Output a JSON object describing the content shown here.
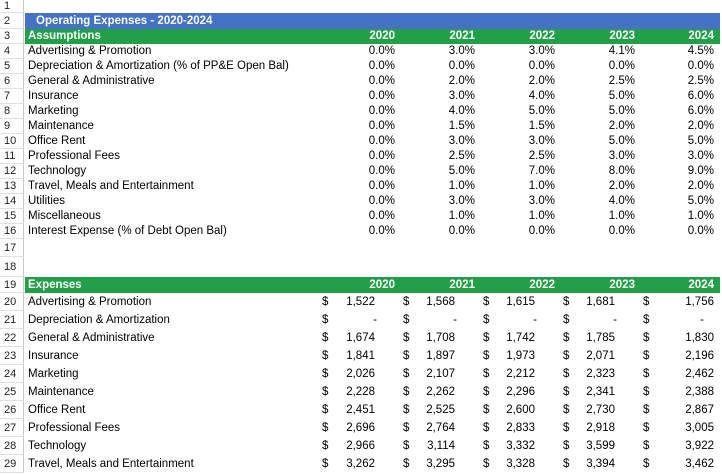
{
  "colors": {
    "title_band": "#4472c4",
    "section_band": "#21a047"
  },
  "title": "Operating Expenses - 2020-2024",
  "assumptions": {
    "header": "Assumptions",
    "years": [
      "2020",
      "2021",
      "2022",
      "2023",
      "2024"
    ],
    "rows": [
      {
        "label": "Advertising & Promotion",
        "values": [
          "0.0%",
          "3.0%",
          "3.0%",
          "4.1%",
          "4.5%"
        ]
      },
      {
        "label": "Depreciation & Amortization (% of PP&E Open Bal)",
        "values": [
          "0.0%",
          "0.0%",
          "0.0%",
          "0.0%",
          "0.0%"
        ]
      },
      {
        "label": "General & Administrative",
        "values": [
          "0.0%",
          "2.0%",
          "2.0%",
          "2.5%",
          "2.5%"
        ]
      },
      {
        "label": "Insurance",
        "values": [
          "0.0%",
          "3.0%",
          "4.0%",
          "5.0%",
          "6.0%"
        ]
      },
      {
        "label": "Marketing",
        "values": [
          "0.0%",
          "4.0%",
          "5.0%",
          "5.0%",
          "6.0%"
        ]
      },
      {
        "label": "Maintenance",
        "values": [
          "0.0%",
          "1.5%",
          "1.5%",
          "2.0%",
          "2.0%"
        ]
      },
      {
        "label": "Office Rent",
        "values": [
          "0.0%",
          "3.0%",
          "3.0%",
          "5.0%",
          "5.0%"
        ]
      },
      {
        "label": "Professional Fees",
        "values": [
          "0.0%",
          "2.5%",
          "2.5%",
          "3.0%",
          "3.0%"
        ]
      },
      {
        "label": "Technology",
        "values": [
          "0.0%",
          "5.0%",
          "7.0%",
          "8.0%",
          "9.0%"
        ]
      },
      {
        "label": "Travel, Meals and Entertainment",
        "values": [
          "0.0%",
          "1.0%",
          "1.0%",
          "2.0%",
          "2.0%"
        ]
      },
      {
        "label": "Utilities",
        "values": [
          "0.0%",
          "3.0%",
          "3.0%",
          "4.0%",
          "5.0%"
        ]
      },
      {
        "label": "Miscellaneous",
        "values": [
          "0.0%",
          "1.0%",
          "1.0%",
          "1.0%",
          "1.0%"
        ]
      },
      {
        "label": "Interest Expense (% of Debt Open Bal)",
        "values": [
          "0.0%",
          "0.0%",
          "0.0%",
          "0.0%",
          "0.0%"
        ]
      }
    ]
  },
  "expenses": {
    "header": "Expenses",
    "years": [
      "2020",
      "2021",
      "2022",
      "2023",
      "2024"
    ],
    "currency": "$",
    "rows": [
      {
        "label": "Advertising & Promotion",
        "values": [
          "1,522",
          "1,568",
          "1,615",
          "1,681",
          "1,756"
        ]
      },
      {
        "label": "Depreciation & Amortization",
        "values": [
          "-",
          "-",
          "-",
          "-",
          "-"
        ]
      },
      {
        "label": "General & Administrative",
        "values": [
          "1,674",
          "1,708",
          "1,742",
          "1,785",
          "1,830"
        ]
      },
      {
        "label": "Insurance",
        "values": [
          "1,841",
          "1,897",
          "1,973",
          "2,071",
          "2,196"
        ]
      },
      {
        "label": "Marketing",
        "values": [
          "2,026",
          "2,107",
          "2,212",
          "2,323",
          "2,462"
        ]
      },
      {
        "label": "Maintenance",
        "values": [
          "2,228",
          "2,262",
          "2,296",
          "2,341",
          "2,388"
        ]
      },
      {
        "label": "Office Rent",
        "values": [
          "2,451",
          "2,525",
          "2,600",
          "2,730",
          "2,867"
        ]
      },
      {
        "label": "Professional Fees",
        "values": [
          "2,696",
          "2,764",
          "2,833",
          "2,918",
          "3,005"
        ]
      },
      {
        "label": "Technology",
        "values": [
          "2,966",
          "3,114",
          "3,332",
          "3,599",
          "3,922"
        ]
      },
      {
        "label": "Travel, Meals and Entertainment",
        "values": [
          "3,262",
          "3,295",
          "3,328",
          "3,394",
          "3,462"
        ]
      }
    ]
  }
}
